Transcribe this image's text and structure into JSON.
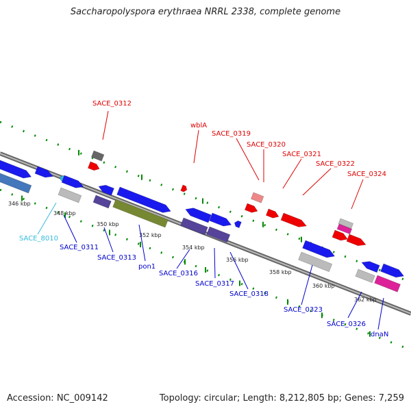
{
  "title": "Saccharopolyspora erythraea NRRL 2338, complete genome",
  "footer": {
    "accession": "Accession: NC_009142",
    "topology": "Topology: circular; Length: 8,212,805 bp; Genes: 7,259"
  },
  "colors": {
    "top_label": "#dd0000",
    "bottom_label": "#0000cc",
    "special_label": "#33bbdd",
    "backbone": "#808080",
    "tick": "#008800"
  },
  "scale_ticks": [
    "346 kbp",
    "348 kbp",
    "350 kbp",
    "352 kbp",
    "354 kbp",
    "356 kbp",
    "358 kbp",
    "360 kbp",
    "362 kbp"
  ],
  "gene_labels_top": [
    "SACE_0312",
    "wblA",
    "SACE_0319",
    "SACE_0320",
    "SACE_0321",
    "SACE_0322",
    "SACE_0324"
  ],
  "gene_labels_bottom": [
    "SACE_8010",
    "SACE_0311",
    "SACE_0313",
    "pon1",
    "SACE_0316",
    "SACE_0317",
    "SACE_0318",
    "SACE_0323",
    "SACE_0326",
    "dnaN"
  ]
}
